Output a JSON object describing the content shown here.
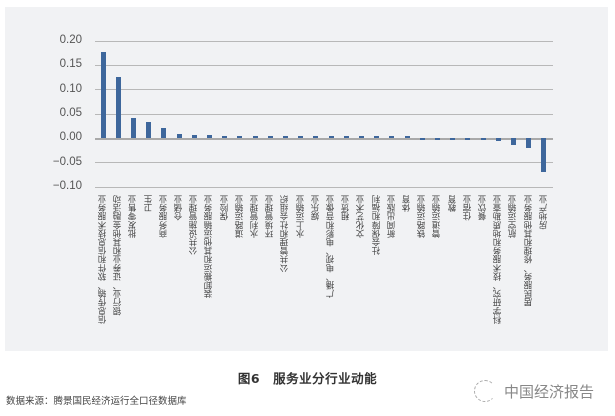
{
  "chart_data": {
    "type": "bar",
    "title": "图6　服务业分行业动能",
    "xlabel": "",
    "ylabel": "",
    "ylim": [
      -0.1,
      0.2
    ],
    "yticks": [
      "0.20",
      "0.15",
      "0.10",
      "0.05",
      "0.00",
      "−0.05",
      "−0.10"
    ],
    "grid": true,
    "legend": null,
    "bar_color": "#3e679c",
    "categories": [
      "信息传输、软件和信息技术服务业",
      "银行业、证券业和其他金融活动",
      "批发零售业",
      "卫生",
      "商务服务业",
      "仓储业",
      "公共设施管理业",
      "装卸搬运和其他运输服务业",
      "保险业",
      "道路运输业",
      "水利管理业",
      "环境管理业",
      "公共管理和社会组织",
      "水上运输业",
      "娱乐业",
      "广播、电视、电影和音像业",
      "租赁业",
      "文化艺术业",
      "社会保障和福利",
      "新闻出版业",
      "体育",
      "铁路运输业",
      "管道运输业",
      "教育",
      "住宿业",
      "餐饮业",
      "科学研究、技术服务和地质勘查业",
      "航空运输业",
      "居民服务、修理和其他服务业",
      "房地产业"
    ],
    "values": [
      0.177,
      0.126,
      0.042,
      0.034,
      0.021,
      0.009,
      0.007,
      0.007,
      0.005,
      0.003,
      0.003,
      0.003,
      0.003,
      0.003,
      0.003,
      0.003,
      0.003,
      0.003,
      0.003,
      0.003,
      0.001,
      -0.001,
      -0.001,
      -0.001,
      -0.002,
      -0.003,
      -0.006,
      -0.014,
      -0.019,
      -0.07
    ]
  },
  "caption": "图6　服务业分行业动能",
  "source": "数据来源：腾景国民经济运行全口径数据库",
  "watermark": "中国经济报告"
}
